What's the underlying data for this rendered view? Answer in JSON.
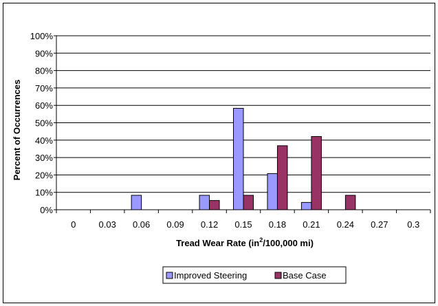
{
  "chart_data": {
    "type": "bar",
    "title": "",
    "xlabel": {
      "main": "Tread Wear Rate (in",
      "sup": "2",
      "rest": "/100,000 mi)"
    },
    "ylabel": "Percent of  Occurrences",
    "categories": [
      "0",
      "0.03",
      "0.06",
      "0.09",
      "0.12",
      "0.15",
      "0.18",
      "0.21",
      "0.24",
      "0.27",
      "0.3"
    ],
    "ylim": [
      0,
      100
    ],
    "yticks": [
      "0%",
      "10%",
      "20%",
      "30%",
      "40%",
      "50%",
      "60%",
      "70%",
      "80%",
      "90%",
      "100%"
    ],
    "grid": true,
    "legend_position": "bottom",
    "series": [
      {
        "name": "Improved Steering",
        "color": "#9999ff",
        "values": [
          0,
          0,
          8.3,
          0,
          8.3,
          58.3,
          20.8,
          4.2,
          0,
          0,
          0
        ]
      },
      {
        "name": "Base Case",
        "color": "#993366",
        "values": [
          0,
          0,
          0,
          0,
          5.3,
          8.3,
          36.8,
          42.1,
          8.3,
          0,
          0
        ]
      }
    ]
  }
}
